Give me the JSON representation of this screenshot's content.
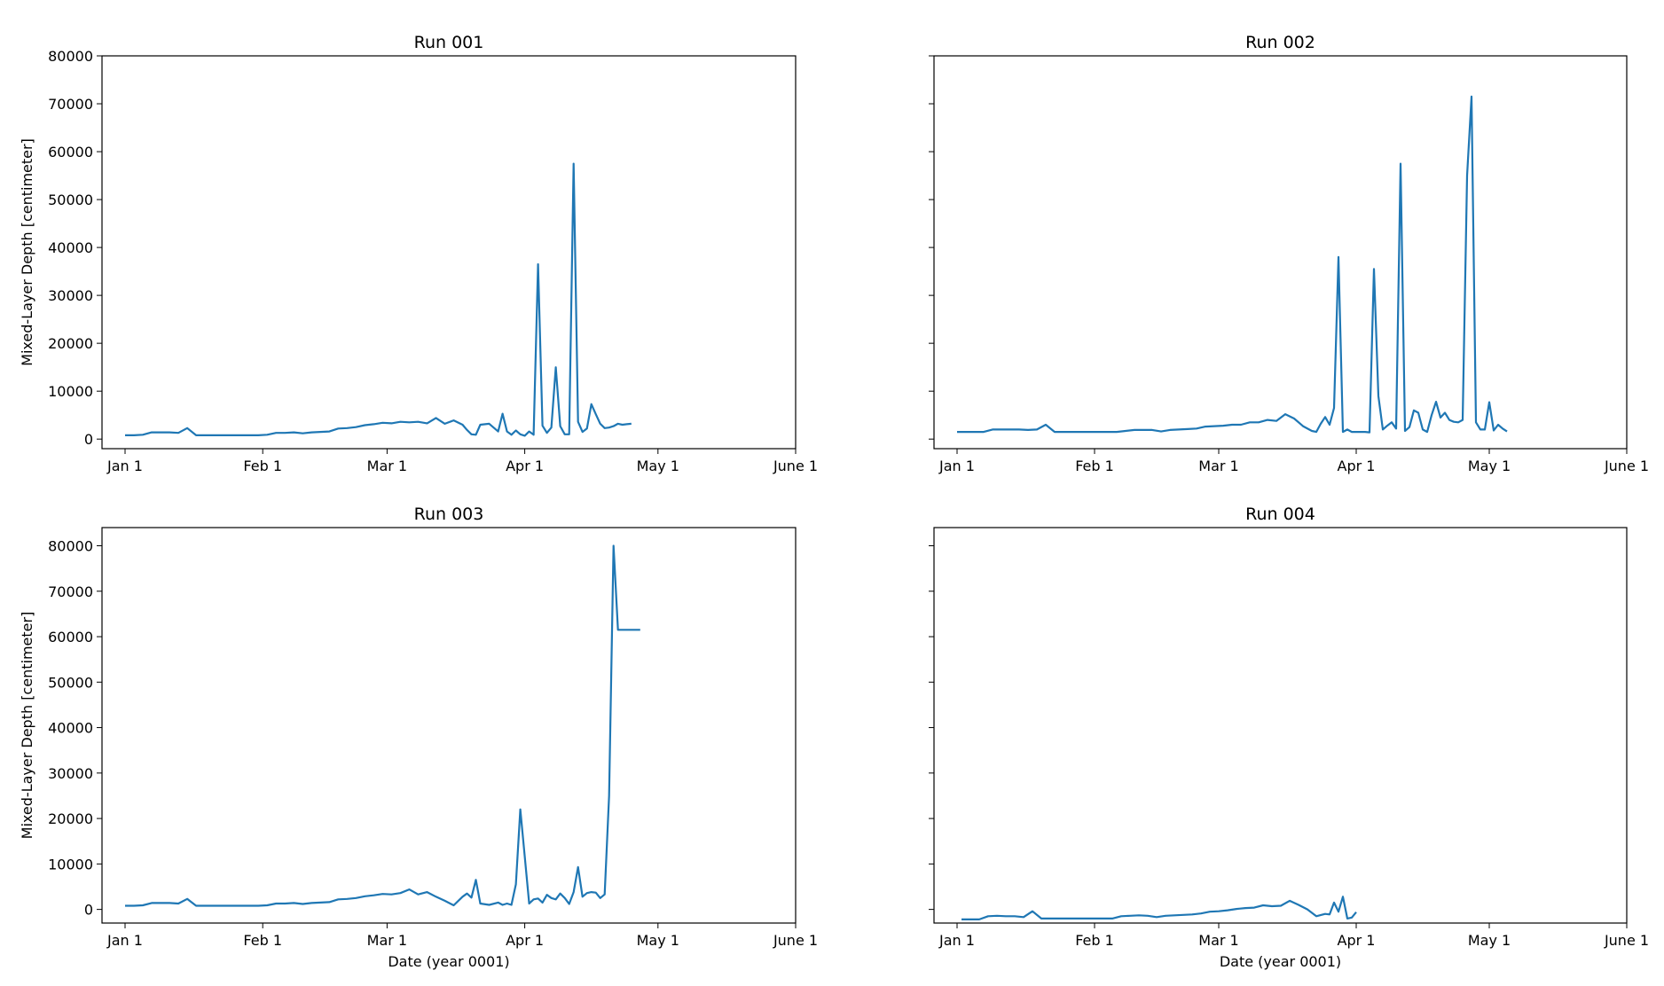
{
  "chart_data": [
    {
      "type": "line",
      "title": "Run 001",
      "xlabel": "",
      "ylabel": "Mixed-Layer Depth [centimeter]",
      "xlim": [
        "0001-01-01",
        "0001-06-01"
      ],
      "ylim": [
        -2000,
        80000
      ],
      "xticks": [
        {
          "date": "0001-01-01",
          "label": "Jan 1"
        },
        {
          "date": "0001-02-01",
          "label": "Feb 1"
        },
        {
          "date": "0001-03-01",
          "label": "Mar 1"
        },
        {
          "date": "0001-04-01",
          "label": "Apr 1"
        },
        {
          "date": "0001-05-01",
          "label": "May 1"
        },
        {
          "date": "0001-06-01",
          "label": "June 1"
        }
      ],
      "yticks": [
        "0",
        "10000",
        "20000",
        "30000",
        "40000",
        "50000",
        "60000",
        "70000",
        "80000"
      ],
      "grid": false,
      "series": [
        {
          "color": "#1f77b4",
          "x": [
            "0001-01-01",
            "0001-01-03",
            "0001-01-05",
            "0001-01-07",
            "0001-01-09",
            "0001-01-11",
            "0001-01-13",
            "0001-01-15",
            "0001-01-17",
            "0001-01-19",
            "0001-01-21",
            "0001-01-23",
            "0001-01-25",
            "0001-01-27",
            "0001-01-29",
            "0001-01-31",
            "0001-02-02",
            "0001-02-04",
            "0001-02-06",
            "0001-02-08",
            "0001-02-10",
            "0001-02-12",
            "0001-02-14",
            "0001-02-16",
            "0001-02-18",
            "0001-02-20",
            "0001-02-22",
            "0001-02-24",
            "0001-02-26",
            "0001-02-28",
            "0001-03-02",
            "0001-03-04",
            "0001-03-06",
            "0001-03-08",
            "0001-03-10",
            "0001-03-12",
            "0001-03-14",
            "0001-03-16",
            "0001-03-18",
            "0001-03-19",
            "0001-03-20",
            "0001-03-21",
            "0001-03-22",
            "0001-03-24",
            "0001-03-26",
            "0001-03-27",
            "0001-03-28",
            "0001-03-29",
            "0001-03-30",
            "0001-03-31",
            "0001-04-01",
            "0001-04-02",
            "0001-04-03",
            "0001-04-04",
            "0001-04-05",
            "0001-04-06",
            "0001-04-07",
            "0001-04-08",
            "0001-04-09",
            "0001-04-10",
            "0001-04-11",
            "0001-04-12",
            "0001-04-13",
            "0001-04-14",
            "0001-04-15",
            "0001-04-16",
            "0001-04-17",
            "0001-04-18",
            "0001-04-19",
            "0001-04-20",
            "0001-04-21",
            "0001-04-22",
            "0001-04-23",
            "0001-04-24",
            "0001-04-25"
          ],
          "y": [
            800,
            800,
            900,
            1400,
            1400,
            1400,
            1300,
            2300,
            800,
            800,
            800,
            800,
            800,
            800,
            800,
            800,
            900,
            1300,
            1300,
            1400,
            1200,
            1400,
            1500,
            1600,
            2200,
            2300,
            2500,
            2900,
            3100,
            3400,
            3300,
            3600,
            3500,
            3600,
            3300,
            4400,
            3200,
            3900,
            3000,
            1900,
            1000,
            900,
            3000,
            3200,
            1600,
            5300,
            1600,
            900,
            1800,
            1000,
            700,
            1600,
            900,
            36500,
            2800,
            1300,
            2400,
            15000,
            2700,
            1000,
            1000,
            57500,
            3600,
            1500,
            2200,
            7300,
            5200,
            3200,
            2300,
            2400,
            2700,
            3200,
            3000,
            3100,
            3200
          ]
        }
      ]
    },
    {
      "type": "line",
      "title": "Run 002",
      "xlabel": "",
      "ylabel": "",
      "xlim": [
        "0001-01-01",
        "0001-06-01"
      ],
      "ylim": [
        -2000,
        80000
      ],
      "xticks": [
        {
          "date": "0001-01-01",
          "label": "Jan 1"
        },
        {
          "date": "0001-02-01",
          "label": "Feb 1"
        },
        {
          "date": "0001-03-01",
          "label": "Mar 1"
        },
        {
          "date": "0001-04-01",
          "label": "Apr 1"
        },
        {
          "date": "0001-05-01",
          "label": "May 1"
        },
        {
          "date": "0001-06-01",
          "label": "June 1"
        }
      ],
      "yticks": [
        "0",
        "10000",
        "20000",
        "30000",
        "40000",
        "50000",
        "60000",
        "70000",
        "80000"
      ],
      "grid": false,
      "series": [
        {
          "color": "#1f77b4",
          "x": [
            "0001-01-01",
            "0001-01-03",
            "0001-01-05",
            "0001-01-07",
            "0001-01-09",
            "0001-01-11",
            "0001-01-13",
            "0001-01-15",
            "0001-01-17",
            "0001-01-19",
            "0001-01-21",
            "0001-01-23",
            "0001-01-25",
            "0001-01-27",
            "0001-01-29",
            "0001-01-31",
            "0001-02-02",
            "0001-02-04",
            "0001-02-06",
            "0001-02-08",
            "0001-02-10",
            "0001-02-12",
            "0001-02-14",
            "0001-02-16",
            "0001-02-18",
            "0001-02-20",
            "0001-02-22",
            "0001-02-24",
            "0001-02-26",
            "0001-02-28",
            "0001-03-02",
            "0001-03-04",
            "0001-03-06",
            "0001-03-08",
            "0001-03-10",
            "0001-03-12",
            "0001-03-14",
            "0001-03-16",
            "0001-03-18",
            "0001-03-20",
            "0001-03-22",
            "0001-03-23",
            "0001-03-24",
            "0001-03-25",
            "0001-03-26",
            "0001-03-27",
            "0001-03-28",
            "0001-03-29",
            "0001-03-30",
            "0001-03-31",
            "0001-04-02",
            "0001-04-03",
            "0001-04-04",
            "0001-04-05",
            "0001-04-06",
            "0001-04-07",
            "0001-04-08",
            "0001-04-09",
            "0001-04-10",
            "0001-04-11",
            "0001-04-12",
            "0001-04-13",
            "0001-04-14",
            "0001-04-15",
            "0001-04-16",
            "0001-04-17",
            "0001-04-18",
            "0001-04-19",
            "0001-04-20",
            "0001-04-21",
            "0001-04-22",
            "0001-04-23",
            "0001-04-24",
            "0001-04-25",
            "0001-04-26",
            "0001-04-27",
            "0001-04-28",
            "0001-04-29",
            "0001-04-30",
            "0001-05-01",
            "0001-05-02",
            "0001-05-03",
            "0001-05-04",
            "0001-05-05"
          ],
          "y": [
            1500,
            1500,
            1500,
            1500,
            2000,
            2000,
            2000,
            2000,
            1900,
            2000,
            3000,
            1500,
            1500,
            1500,
            1500,
            1500,
            1500,
            1500,
            1500,
            1700,
            1900,
            1900,
            1900,
            1600,
            1900,
            2000,
            2100,
            2200,
            2600,
            2700,
            2800,
            3000,
            3000,
            3500,
            3500,
            4000,
            3800,
            5200,
            4300,
            2700,
            1700,
            1500,
            3200,
            4600,
            3000,
            6500,
            38000,
            1500,
            2000,
            1500,
            1500,
            1500,
            1400,
            35500,
            9000,
            2000,
            2800,
            3500,
            2200,
            57500,
            1700,
            2500,
            6000,
            5500,
            2000,
            1500,
            5000,
            7800,
            4500,
            5500,
            4000,
            3600,
            3500,
            4000,
            55000,
            71500,
            3500,
            2000,
            2000,
            7700,
            1800,
            3000,
            2200,
            1600
          ]
        }
      ]
    },
    {
      "type": "line",
      "title": "Run 003",
      "xlabel": "Date (year 0001)",
      "ylabel": "Mixed-Layer Depth [centimeter]",
      "xlim": [
        "0001-01-01",
        "0001-06-01"
      ],
      "ylim": [
        -3000,
        84000
      ],
      "xticks": [
        {
          "date": "0001-01-01",
          "label": "Jan 1"
        },
        {
          "date": "0001-02-01",
          "label": "Feb 1"
        },
        {
          "date": "0001-03-01",
          "label": "Mar 1"
        },
        {
          "date": "0001-04-01",
          "label": "Apr 1"
        },
        {
          "date": "0001-05-01",
          "label": "May 1"
        },
        {
          "date": "0001-06-01",
          "label": "June 1"
        }
      ],
      "yticks": [
        "0",
        "10000",
        "20000",
        "30000",
        "40000",
        "50000",
        "60000",
        "70000",
        "80000"
      ],
      "grid": false,
      "series": [
        {
          "color": "#1f77b4",
          "x": [
            "0001-01-01",
            "0001-01-03",
            "0001-01-05",
            "0001-01-07",
            "0001-01-09",
            "0001-01-11",
            "0001-01-13",
            "0001-01-15",
            "0001-01-17",
            "0001-01-19",
            "0001-01-21",
            "0001-01-23",
            "0001-01-25",
            "0001-01-27",
            "0001-01-29",
            "0001-01-31",
            "0001-02-02",
            "0001-02-04",
            "0001-02-06",
            "0001-02-08",
            "0001-02-10",
            "0001-02-12",
            "0001-02-14",
            "0001-02-16",
            "0001-02-18",
            "0001-02-20",
            "0001-02-22",
            "0001-02-24",
            "0001-02-26",
            "0001-02-28",
            "0001-03-02",
            "0001-03-04",
            "0001-03-06",
            "0001-03-08",
            "0001-03-10",
            "0001-03-12",
            "0001-03-14",
            "0001-03-16",
            "0001-03-18",
            "0001-03-19",
            "0001-03-20",
            "0001-03-21",
            "0001-03-22",
            "0001-03-24",
            "0001-03-26",
            "0001-03-27",
            "0001-03-28",
            "0001-03-29",
            "0001-03-30",
            "0001-03-31",
            "0001-04-02",
            "0001-04-03",
            "0001-04-04",
            "0001-04-05",
            "0001-04-06",
            "0001-04-07",
            "0001-04-08",
            "0001-04-09",
            "0001-04-10",
            "0001-04-11",
            "0001-04-12",
            "0001-04-13",
            "0001-04-14",
            "0001-04-15",
            "0001-04-16",
            "0001-04-17",
            "0001-04-18",
            "0001-04-19",
            "0001-04-20",
            "0001-04-21",
            "0001-04-22",
            "0001-04-23",
            "0001-04-24",
            "0001-04-25",
            "0001-04-26",
            "0001-04-27"
          ],
          "y": [
            800,
            800,
            900,
            1400,
            1400,
            1400,
            1300,
            2300,
            800,
            800,
            800,
            800,
            800,
            800,
            800,
            800,
            900,
            1300,
            1300,
            1400,
            1200,
            1400,
            1500,
            1600,
            2200,
            2300,
            2500,
            2900,
            3100,
            3400,
            3300,
            3600,
            4400,
            3300,
            3800,
            2800,
            1900,
            900,
            2800,
            3500,
            2600,
            6500,
            1300,
            1000,
            1500,
            1000,
            1300,
            1000,
            5500,
            22000,
            1300,
            2200,
            2400,
            1500,
            3200,
            2500,
            2200,
            3500,
            2500,
            1200,
            3800,
            9300,
            2800,
            3600,
            3800,
            3700,
            2500,
            3300,
            25000,
            80000,
            61500,
            61500,
            61500,
            61500,
            61500,
            61500
          ]
        }
      ]
    },
    {
      "type": "line",
      "title": "Run 004",
      "xlabel": "Date (year 0001)",
      "ylabel": "",
      "xlim": [
        "0001-01-01",
        "0001-06-01"
      ],
      "ylim": [
        -3000,
        84000
      ],
      "xticks": [
        {
          "date": "0001-01-01",
          "label": "Jan 1"
        },
        {
          "date": "0001-02-01",
          "label": "Feb 1"
        },
        {
          "date": "0001-03-01",
          "label": "Mar 1"
        },
        {
          "date": "0001-04-01",
          "label": "Apr 1"
        },
        {
          "date": "0001-05-01",
          "label": "May 1"
        },
        {
          "date": "0001-06-01",
          "label": "June 1"
        }
      ],
      "yticks": [
        "0",
        "10000",
        "20000",
        "30000",
        "40000",
        "50000",
        "60000",
        "70000",
        "80000"
      ],
      "grid": false,
      "series": [
        {
          "color": "#1f77b4",
          "x": [
            "0001-01-02",
            "0001-01-04",
            "0001-01-06",
            "0001-01-08",
            "0001-01-10",
            "0001-01-12",
            "0001-01-14",
            "0001-01-16",
            "0001-01-18",
            "0001-01-20",
            "0001-01-22",
            "0001-01-24",
            "0001-01-26",
            "0001-01-28",
            "0001-01-30",
            "0001-02-01",
            "0001-02-03",
            "0001-02-05",
            "0001-02-07",
            "0001-02-09",
            "0001-02-11",
            "0001-02-13",
            "0001-02-15",
            "0001-02-17",
            "0001-02-19",
            "0001-02-21",
            "0001-02-23",
            "0001-02-25",
            "0001-02-27",
            "0001-03-01",
            "0001-03-03",
            "0001-03-05",
            "0001-03-07",
            "0001-03-09",
            "0001-03-11",
            "0001-03-13",
            "0001-03-15",
            "0001-03-17",
            "0001-03-19",
            "0001-03-21",
            "0001-03-23",
            "0001-03-25",
            "0001-03-26",
            "0001-03-27",
            "0001-03-28",
            "0001-03-29",
            "0001-03-30",
            "0001-03-31",
            "0001-04-01"
          ],
          "y": [
            -2200,
            -2200,
            -2200,
            -1500,
            -1400,
            -1500,
            -1500,
            -1700,
            -400,
            -2000,
            -2000,
            -2000,
            -2000,
            -2000,
            -2000,
            -2000,
            -2000,
            -2000,
            -1500,
            -1400,
            -1300,
            -1400,
            -1700,
            -1400,
            -1300,
            -1200,
            -1100,
            -900,
            -500,
            -400,
            -200,
            100,
            300,
            400,
            900,
            700,
            800,
            1900,
            1000,
            0,
            -1500,
            -1000,
            -1100,
            1500,
            -500,
            2800,
            -2000,
            -1800,
            -600
          ]
        }
      ]
    }
  ]
}
